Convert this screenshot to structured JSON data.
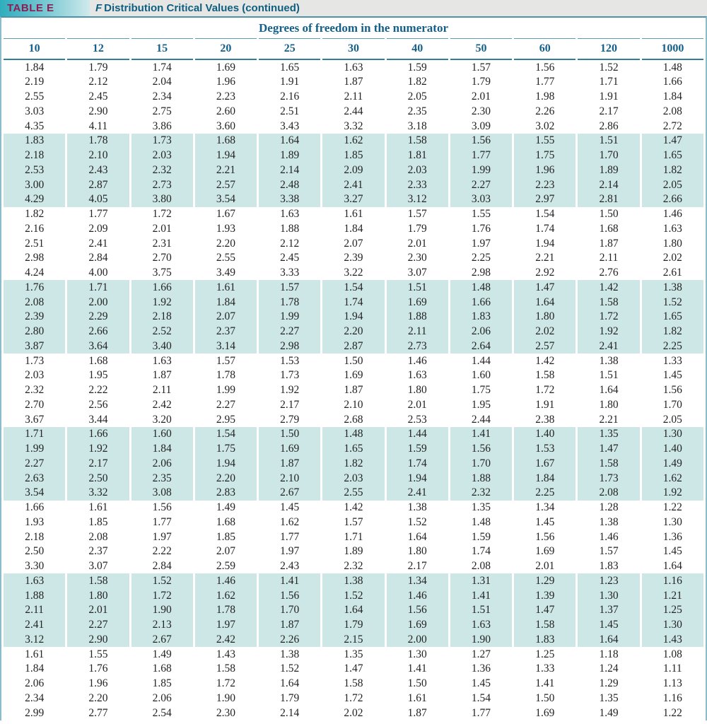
{
  "page": {
    "badge": "TABLE E",
    "title_f": "F",
    "title_rest": "Distribution Critical Values (continued)"
  },
  "table": {
    "header": "Degrees of freedom in the numerator",
    "columns": [
      "10",
      "12",
      "15",
      "20",
      "25",
      "30",
      "40",
      "50",
      "60",
      "120",
      "1000"
    ],
    "rows": [
      [
        "1.84",
        "1.79",
        "1.74",
        "1.69",
        "1.65",
        "1.63",
        "1.59",
        "1.57",
        "1.56",
        "1.52",
        "1.48"
      ],
      [
        "2.19",
        "2.12",
        "2.04",
        "1.96",
        "1.91",
        "1.87",
        "1.82",
        "1.79",
        "1.77",
        "1.71",
        "1.66"
      ],
      [
        "2.55",
        "2.45",
        "2.34",
        "2.23",
        "2.16",
        "2.11",
        "2.05",
        "2.01",
        "1.98",
        "1.91",
        "1.84"
      ],
      [
        "3.03",
        "2.90",
        "2.75",
        "2.60",
        "2.51",
        "2.44",
        "2.35",
        "2.30",
        "2.26",
        "2.17",
        "2.08"
      ],
      [
        "4.35",
        "4.11",
        "3.86",
        "3.60",
        "3.43",
        "3.32",
        "3.18",
        "3.09",
        "3.02",
        "2.86",
        "2.72"
      ],
      [
        "1.83",
        "1.78",
        "1.73",
        "1.68",
        "1.64",
        "1.62",
        "1.58",
        "1.56",
        "1.55",
        "1.51",
        "1.47"
      ],
      [
        "2.18",
        "2.10",
        "2.03",
        "1.94",
        "1.89",
        "1.85",
        "1.81",
        "1.77",
        "1.75",
        "1.70",
        "1.65"
      ],
      [
        "2.53",
        "2.43",
        "2.32",
        "2.21",
        "2.14",
        "2.09",
        "2.03",
        "1.99",
        "1.96",
        "1.89",
        "1.82"
      ],
      [
        "3.00",
        "2.87",
        "2.73",
        "2.57",
        "2.48",
        "2.41",
        "2.33",
        "2.27",
        "2.23",
        "2.14",
        "2.05"
      ],
      [
        "4.29",
        "4.05",
        "3.80",
        "3.54",
        "3.38",
        "3.27",
        "3.12",
        "3.03",
        "2.97",
        "2.81",
        "2.66"
      ],
      [
        "1.82",
        "1.77",
        "1.72",
        "1.67",
        "1.63",
        "1.61",
        "1.57",
        "1.55",
        "1.54",
        "1.50",
        "1.46"
      ],
      [
        "2.16",
        "2.09",
        "2.01",
        "1.93",
        "1.88",
        "1.84",
        "1.79",
        "1.76",
        "1.74",
        "1.68",
        "1.63"
      ],
      [
        "2.51",
        "2.41",
        "2.31",
        "2.20",
        "2.12",
        "2.07",
        "2.01",
        "1.97",
        "1.94",
        "1.87",
        "1.80"
      ],
      [
        "2.98",
        "2.84",
        "2.70",
        "2.55",
        "2.45",
        "2.39",
        "2.30",
        "2.25",
        "2.21",
        "2.11",
        "2.02"
      ],
      [
        "4.24",
        "4.00",
        "3.75",
        "3.49",
        "3.33",
        "3.22",
        "3.07",
        "2.98",
        "2.92",
        "2.76",
        "2.61"
      ],
      [
        "1.76",
        "1.71",
        "1.66",
        "1.61",
        "1.57",
        "1.54",
        "1.51",
        "1.48",
        "1.47",
        "1.42",
        "1.38"
      ],
      [
        "2.08",
        "2.00",
        "1.92",
        "1.84",
        "1.78",
        "1.74",
        "1.69",
        "1.66",
        "1.64",
        "1.58",
        "1.52"
      ],
      [
        "2.39",
        "2.29",
        "2.18",
        "2.07",
        "1.99",
        "1.94",
        "1.88",
        "1.83",
        "1.80",
        "1.72",
        "1.65"
      ],
      [
        "2.80",
        "2.66",
        "2.52",
        "2.37",
        "2.27",
        "2.20",
        "2.11",
        "2.06",
        "2.02",
        "1.92",
        "1.82"
      ],
      [
        "3.87",
        "3.64",
        "3.40",
        "3.14",
        "2.98",
        "2.87",
        "2.73",
        "2.64",
        "2.57",
        "2.41",
        "2.25"
      ],
      [
        "1.73",
        "1.68",
        "1.63",
        "1.57",
        "1.53",
        "1.50",
        "1.46",
        "1.44",
        "1.42",
        "1.38",
        "1.33"
      ],
      [
        "2.03",
        "1.95",
        "1.87",
        "1.78",
        "1.73",
        "1.69",
        "1.63",
        "1.60",
        "1.58",
        "1.51",
        "1.45"
      ],
      [
        "2.32",
        "2.22",
        "2.11",
        "1.99",
        "1.92",
        "1.87",
        "1.80",
        "1.75",
        "1.72",
        "1.64",
        "1.56"
      ],
      [
        "2.70",
        "2.56",
        "2.42",
        "2.27",
        "2.17",
        "2.10",
        "2.01",
        "1.95",
        "1.91",
        "1.80",
        "1.70"
      ],
      [
        "3.67",
        "3.44",
        "3.20",
        "2.95",
        "2.79",
        "2.68",
        "2.53",
        "2.44",
        "2.38",
        "2.21",
        "2.05"
      ],
      [
        "1.71",
        "1.66",
        "1.60",
        "1.54",
        "1.50",
        "1.48",
        "1.44",
        "1.41",
        "1.40",
        "1.35",
        "1.30"
      ],
      [
        "1.99",
        "1.92",
        "1.84",
        "1.75",
        "1.69",
        "1.65",
        "1.59",
        "1.56",
        "1.53",
        "1.47",
        "1.40"
      ],
      [
        "2.27",
        "2.17",
        "2.06",
        "1.94",
        "1.87",
        "1.82",
        "1.74",
        "1.70",
        "1.67",
        "1.58",
        "1.49"
      ],
      [
        "2.63",
        "2.50",
        "2.35",
        "2.20",
        "2.10",
        "2.03",
        "1.94",
        "1.88",
        "1.84",
        "1.73",
        "1.62"
      ],
      [
        "3.54",
        "3.32",
        "3.08",
        "2.83",
        "2.67",
        "2.55",
        "2.41",
        "2.32",
        "2.25",
        "2.08",
        "1.92"
      ],
      [
        "1.66",
        "1.61",
        "1.56",
        "1.49",
        "1.45",
        "1.42",
        "1.38",
        "1.35",
        "1.34",
        "1.28",
        "1.22"
      ],
      [
        "1.93",
        "1.85",
        "1.77",
        "1.68",
        "1.62",
        "1.57",
        "1.52",
        "1.48",
        "1.45",
        "1.38",
        "1.30"
      ],
      [
        "2.18",
        "2.08",
        "1.97",
        "1.85",
        "1.77",
        "1.71",
        "1.64",
        "1.59",
        "1.56",
        "1.46",
        "1.36"
      ],
      [
        "2.50",
        "2.37",
        "2.22",
        "2.07",
        "1.97",
        "1.89",
        "1.80",
        "1.74",
        "1.69",
        "1.57",
        "1.45"
      ],
      [
        "3.30",
        "3.07",
        "2.84",
        "2.59",
        "2.43",
        "2.32",
        "2.17",
        "2.08",
        "2.01",
        "1.83",
        "1.64"
      ],
      [
        "1.63",
        "1.58",
        "1.52",
        "1.46",
        "1.41",
        "1.38",
        "1.34",
        "1.31",
        "1.29",
        "1.23",
        "1.16"
      ],
      [
        "1.88",
        "1.80",
        "1.72",
        "1.62",
        "1.56",
        "1.52",
        "1.46",
        "1.41",
        "1.39",
        "1.30",
        "1.21"
      ],
      [
        "2.11",
        "2.01",
        "1.90",
        "1.78",
        "1.70",
        "1.64",
        "1.56",
        "1.51",
        "1.47",
        "1.37",
        "1.25"
      ],
      [
        "2.41",
        "2.27",
        "2.13",
        "1.97",
        "1.87",
        "1.79",
        "1.69",
        "1.63",
        "1.58",
        "1.45",
        "1.30"
      ],
      [
        "3.12",
        "2.90",
        "2.67",
        "2.42",
        "2.26",
        "2.15",
        "2.00",
        "1.90",
        "1.83",
        "1.64",
        "1.43"
      ],
      [
        "1.61",
        "1.55",
        "1.49",
        "1.43",
        "1.38",
        "1.35",
        "1.30",
        "1.27",
        "1.25",
        "1.18",
        "1.08"
      ],
      [
        "1.84",
        "1.76",
        "1.68",
        "1.58",
        "1.52",
        "1.47",
        "1.41",
        "1.36",
        "1.33",
        "1.24",
        "1.11"
      ],
      [
        "2.06",
        "1.96",
        "1.85",
        "1.72",
        "1.64",
        "1.58",
        "1.50",
        "1.45",
        "1.41",
        "1.29",
        "1.13"
      ],
      [
        "2.34",
        "2.20",
        "2.06",
        "1.90",
        "1.79",
        "1.72",
        "1.61",
        "1.54",
        "1.50",
        "1.35",
        "1.16"
      ],
      [
        "2.99",
        "2.77",
        "2.54",
        "2.30",
        "2.14",
        "2.02",
        "1.87",
        "1.77",
        "1.69",
        "1.49",
        "1.22"
      ]
    ]
  },
  "colors": {
    "badge_text": "#8E1D55",
    "badge_gradient_start": "#2FADBD",
    "badge_gradient_end": "#CFEAEC",
    "title_text": "#0F5F80",
    "topbar_gray": "#E6E6E4",
    "header_text": "#156089",
    "rule_teal": "#4F93AA",
    "heavy_rule_teal": "#2E7F97",
    "band_fill": "#CDE7E6",
    "data_text": "#232323"
  }
}
